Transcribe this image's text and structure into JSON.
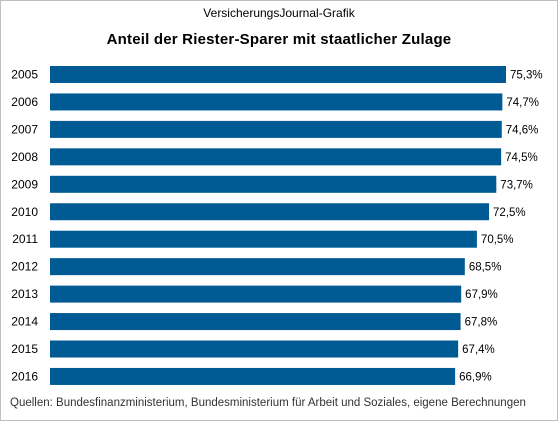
{
  "header": {
    "source_label": "VersicherungsJournal-Grafik",
    "title": "Anteil der Riester-Sparer mit staatlicher Zulage"
  },
  "footnote": "Quellen: Bundesfinanzministerium,  Bundesministerium für Arbeit und Soziales, eigene Berechnungen",
  "colors": {
    "bar": "#005A93"
  },
  "chart_data": {
    "type": "bar",
    "orientation": "horizontal",
    "title": "Anteil der Riester-Sparer mit staatlicher Zulage",
    "categories": [
      "2005",
      "2006",
      "2007",
      "2008",
      "2009",
      "2010",
      "2011",
      "2012",
      "2013",
      "2014",
      "2015",
      "2016"
    ],
    "values": [
      75.3,
      74.7,
      74.6,
      74.5,
      73.7,
      72.5,
      70.5,
      68.5,
      67.9,
      67.8,
      67.4,
      66.9
    ],
    "value_labels": [
      "75,3%",
      "74,7%",
      "74,6%",
      "74,5%",
      "73,7%",
      "72,5%",
      "70,5%",
      "68,5%",
      "67,9%",
      "67,8%",
      "67,4%",
      "66,9%"
    ],
    "xlim": [
      0,
      75.3
    ],
    "grid": false,
    "legend": "none"
  }
}
